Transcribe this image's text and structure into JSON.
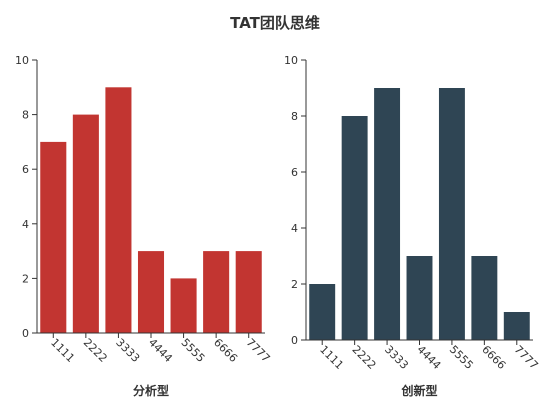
{
  "title": "TAT团队思维",
  "chart_data": [
    {
      "type": "bar",
      "title": "分析型",
      "categories": [
        "1111",
        "2222",
        "3333",
        "4444",
        "5555",
        "6666",
        "7777"
      ],
      "values": [
        7,
        8,
        9,
        3,
        2,
        3,
        3
      ],
      "ylim": [
        0,
        10
      ],
      "yticks": [
        0,
        2,
        4,
        6,
        8,
        10
      ],
      "color": "#c23531"
    },
    {
      "type": "bar",
      "title": "创新型",
      "categories": [
        "1111",
        "2222",
        "3333",
        "4444",
        "5555",
        "6666",
        "7777"
      ],
      "values": [
        2,
        8,
        9,
        3,
        9,
        3,
        1
      ],
      "ylim": [
        0,
        10
      ],
      "yticks": [
        0,
        2,
        4,
        6,
        8,
        10
      ],
      "color": "#2f4554"
    }
  ]
}
